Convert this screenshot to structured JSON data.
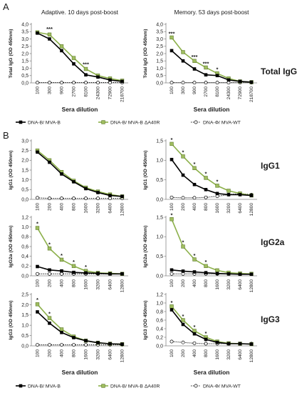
{
  "panel_letters": [
    "A",
    "B"
  ],
  "colors": {
    "dna_b_mva_b": "#000000",
    "dna_b_mva_b_da40r_line": "#8cb04a",
    "dna_b_mva_b_da40r_marker": "#9fbd5f",
    "dna_phi_mva_wt": "#000000"
  },
  "legends": [
    {
      "items": [
        "DNA-B/ MVA-B",
        "DNA-B/ MVA-B ΔA40R",
        "DNA-Φ/ MVA-WT"
      ]
    },
    {
      "items": [
        "DNA-B/ MVA-B",
        "DNA-B/ MVA-B ΔA40R",
        "DNA-Φ/ MVA-WT"
      ]
    }
  ],
  "row_labels": [
    "Total IgG",
    "IgG1",
    "IgG2a",
    "IgG3"
  ],
  "chart_data": [
    {
      "type": "line",
      "title": "Adaptive. 10 days post-boost",
      "xlabel": "Sera dilution",
      "ylabel": "Total IgG (OD 450nm)",
      "ylim": [
        0,
        4
      ],
      "yticks": [
        "0,0",
        "0,5",
        "1,0",
        "1,5",
        "2,0",
        "2,5",
        "3,0",
        "3,5",
        "4,0"
      ],
      "categories": [
        "100",
        "300",
        "900",
        "2700",
        "8100",
        "24300",
        "72900",
        "218700"
      ],
      "series": [
        {
          "name": "DNA-B/ MVA-B",
          "values": [
            3.4,
            3.0,
            2.2,
            1.3,
            0.55,
            0.4,
            0.2,
            0.1
          ]
        },
        {
          "name": "DNA-B/ MVA-B ΔA40R",
          "values": [
            3.45,
            3.3,
            2.5,
            1.7,
            0.95,
            0.5,
            0.3,
            0.15
          ]
        },
        {
          "name": "DNA-Φ/ MVA-WT",
          "values": [
            0.02,
            0.02,
            0.02,
            0.02,
            0.02,
            0.02,
            0.02,
            0.02
          ]
        }
      ],
      "annotations": [
        {
          "x": "300",
          "y": 3.55,
          "text": "***"
        },
        {
          "x": "8100",
          "y": 1.15,
          "text": "***"
        }
      ]
    },
    {
      "type": "line",
      "title": "Memory. 53 days post-boost",
      "xlabel": "Sera dilution",
      "ylabel": "Total IgG (OD 450nm)",
      "ylim": [
        0,
        4
      ],
      "yticks": [
        "0,0",
        "0,5",
        "1,0",
        "1,5",
        "2,0",
        "2,5",
        "3,0",
        "3,5",
        "4,0"
      ],
      "categories": [
        "100",
        "300",
        "900",
        "2700",
        "8100",
        "24300",
        "72900",
        "218700"
      ],
      "series": [
        {
          "name": "DNA-B/ MVA-B",
          "values": [
            2.2,
            1.5,
            0.95,
            0.55,
            0.5,
            0.2,
            0.1,
            0.05
          ]
        },
        {
          "name": "DNA-B/ MVA-B ΔA40R",
          "values": [
            3.1,
            2.1,
            1.5,
            1.05,
            0.65,
            0.3,
            0.1,
            0.05
          ]
        },
        {
          "name": "DNA-Φ/ MVA-WT",
          "values": [
            0.02,
            0.02,
            0.02,
            0.02,
            0.02,
            0.02,
            0.02,
            0.02
          ]
        }
      ],
      "annotations": [
        {
          "x": "100",
          "y": 3.25,
          "text": "***"
        },
        {
          "x": "900",
          "y": 1.65,
          "text": "***"
        },
        {
          "x": "2700",
          "y": 1.2,
          "text": "***"
        },
        {
          "x": "8100",
          "y": 0.8,
          "text": "*"
        }
      ]
    },
    {
      "type": "line",
      "title": "",
      "xlabel": "",
      "ylabel": "IgG1 (OD 450nm)",
      "ylim": [
        0,
        3
      ],
      "yticks": [
        "0,0",
        "0,5",
        "1,0",
        "1,5",
        "2,0",
        "2,5",
        "3,0"
      ],
      "categories": [
        "100",
        "200",
        "400",
        "800",
        "1600",
        "3200",
        "6400",
        "12800"
      ],
      "series": [
        {
          "name": "DNA-B/ MVA-B",
          "values": [
            2.42,
            1.9,
            1.3,
            0.9,
            0.55,
            0.35,
            0.2,
            0.15
          ]
        },
        {
          "name": "DNA-B/ MVA-B ΔA40R",
          "values": [
            2.5,
            2.0,
            1.4,
            0.95,
            0.6,
            0.4,
            0.25,
            0.15
          ]
        },
        {
          "name": "DNA-Φ/ MVA-WT",
          "values": [
            0.08,
            0.05,
            0.05,
            0.05,
            0.05,
            0.05,
            0.05,
            0.05
          ]
        }
      ],
      "annotations": []
    },
    {
      "type": "line",
      "title": "",
      "xlabel": "",
      "ylabel": "IgG1 (OD 450nm)",
      "ylim": [
        0,
        1.5
      ],
      "yticks": [
        "0,0",
        "0,5",
        "1,0",
        "1,5"
      ],
      "categories": [
        "100",
        "200",
        "400",
        "800",
        "1600",
        "3200",
        "6400",
        "12800"
      ],
      "series": [
        {
          "name": "DNA-B/ MVA-B",
          "values": [
            1.02,
            0.62,
            0.38,
            0.25,
            0.15,
            0.12,
            0.12,
            0.1
          ]
        },
        {
          "name": "DNA-B/ MVA-B ΔA40R",
          "values": [
            1.42,
            1.1,
            0.8,
            0.55,
            0.35,
            0.22,
            0.15,
            0.1
          ]
        },
        {
          "name": "DNA-Φ/ MVA-WT",
          "values": [
            0.05,
            0.04,
            0.04,
            0.05,
            0.08,
            0.12,
            0.15,
            0.12
          ]
        }
      ],
      "annotations": [
        {
          "x": "100",
          "y": 1.48,
          "text": "*"
        },
        {
          "x": "200",
          "y": 1.16,
          "text": "*"
        },
        {
          "x": "400",
          "y": 0.86,
          "text": "*"
        },
        {
          "x": "800",
          "y": 0.61,
          "text": "*"
        },
        {
          "x": "1600",
          "y": 0.41,
          "text": "*"
        }
      ]
    },
    {
      "type": "line",
      "title": "",
      "xlabel": "",
      "ylabel": "IgG2a (OD 450nm)",
      "ylim": [
        0,
        1.2
      ],
      "yticks": [
        "0,0",
        "0,2",
        "0,4",
        "0,6",
        "0,8",
        "1,0",
        "1,2"
      ],
      "categories": [
        "100",
        "200",
        "400",
        "800",
        "1600",
        "3200",
        "6400",
        "12800"
      ],
      "series": [
        {
          "name": "DNA-B/ MVA-B",
          "values": [
            0.19,
            0.12,
            0.1,
            0.07,
            0.06,
            0.05,
            0.04,
            0.04
          ]
        },
        {
          "name": "DNA-B/ MVA-B ΔA40R",
          "values": [
            0.98,
            0.56,
            0.33,
            0.2,
            0.1,
            0.06,
            0.05,
            0.04
          ]
        },
        {
          "name": "DNA-Φ/ MVA-WT",
          "values": [
            0.04,
            0.04,
            0.04,
            0.04,
            0.04,
            0.04,
            0.04,
            0.04
          ]
        }
      ],
      "annotations": [
        {
          "x": "100",
          "y": 1.03,
          "text": "*"
        },
        {
          "x": "200",
          "y": 0.61,
          "text": "*"
        },
        {
          "x": "400",
          "y": 0.38,
          "text": "*"
        },
        {
          "x": "800",
          "y": 0.25,
          "text": "*"
        },
        {
          "x": "1600",
          "y": 0.15,
          "text": "*"
        }
      ]
    },
    {
      "type": "line",
      "title": "",
      "xlabel": "",
      "ylabel": "IgG2a (OD 450nm)",
      "ylim": [
        0,
        1.5
      ],
      "yticks": [
        "0,0",
        "0,5",
        "1,0",
        "1,5"
      ],
      "categories": [
        "100",
        "200",
        "400",
        "800",
        "1600",
        "3200",
        "6400",
        "12800"
      ],
      "series": [
        {
          "name": "DNA-B/ MVA-B",
          "values": [
            0.15,
            0.12,
            0.1,
            0.08,
            0.06,
            0.05,
            0.04,
            0.04
          ]
        },
        {
          "name": "DNA-B/ MVA-B ΔA40R",
          "values": [
            1.45,
            0.75,
            0.42,
            0.25,
            0.14,
            0.08,
            0.06,
            0.05
          ]
        },
        {
          "name": "DNA-Φ/ MVA-WT",
          "values": [
            0.05,
            0.05,
            0.05,
            0.05,
            0.05,
            0.05,
            0.05,
            0.05
          ]
        }
      ],
      "annotations": [
        {
          "x": "100",
          "y": 1.51,
          "text": "*"
        },
        {
          "x": "200",
          "y": 0.81,
          "text": "*"
        },
        {
          "x": "400",
          "y": 0.48,
          "text": "*"
        },
        {
          "x": "800",
          "y": 0.31,
          "text": "*"
        }
      ]
    },
    {
      "type": "line",
      "title": "",
      "xlabel": "Sera dilution",
      "ylabel": "IgG3 (OD 450nm)",
      "ylim": [
        0,
        2.5
      ],
      "yticks": [
        "0,0",
        "0,5",
        "1,0",
        "1,5",
        "2,0",
        "2,5"
      ],
      "categories": [
        "100",
        "200",
        "400",
        "800",
        "1600",
        "3200",
        "6400",
        "12800"
      ],
      "series": [
        {
          "name": "DNA-B/ MVA-B",
          "values": [
            1.65,
            1.1,
            0.65,
            0.4,
            0.25,
            0.15,
            0.1,
            0.08
          ]
        },
        {
          "name": "DNA-B/ MVA-B ΔA40R",
          "values": [
            2.02,
            1.35,
            0.8,
            0.45,
            0.25,
            0.15,
            0.1,
            0.08
          ]
        },
        {
          "name": "DNA-Φ/ MVA-WT",
          "values": [
            0.05,
            0.05,
            0.05,
            0.05,
            0.05,
            0.05,
            0.05,
            0.05
          ]
        }
      ],
      "annotations": [
        {
          "x": "100",
          "y": 2.15,
          "text": "*"
        },
        {
          "x": "200",
          "y": 1.48,
          "text": "*"
        }
      ]
    },
    {
      "type": "line",
      "title": "",
      "xlabel": "Sera dilution",
      "ylabel": "IgG3 (OD 450nm)",
      "ylim": [
        0,
        1.2
      ],
      "yticks": [
        "0,0",
        "0,2",
        "0,4",
        "0,6",
        "0,8",
        "1,0",
        "1,2"
      ],
      "categories": [
        "100",
        "200",
        "400",
        "800",
        "1600",
        "3200",
        "6400",
        "12800"
      ],
      "series": [
        {
          "name": "DNA-B/ MVA-B",
          "values": [
            0.84,
            0.5,
            0.28,
            0.15,
            0.08,
            0.05,
            0.05,
            0.04
          ]
        },
        {
          "name": "DNA-B/ MVA-B ΔA40R",
          "values": [
            0.92,
            0.6,
            0.35,
            0.2,
            0.1,
            0.06,
            0.05,
            0.04
          ]
        },
        {
          "name": "DNA-Φ/ MVA-WT",
          "values": [
            0.1,
            0.08,
            0.06,
            0.05,
            0.05,
            0.05,
            0.05,
            0.05
          ]
        }
      ],
      "annotations": [
        {
          "x": "100",
          "y": 0.97,
          "text": "*"
        },
        {
          "x": "200",
          "y": 0.65,
          "text": "*"
        },
        {
          "x": "400",
          "y": 0.4,
          "text": "*"
        },
        {
          "x": "800",
          "y": 0.25,
          "text": "*"
        }
      ]
    }
  ]
}
